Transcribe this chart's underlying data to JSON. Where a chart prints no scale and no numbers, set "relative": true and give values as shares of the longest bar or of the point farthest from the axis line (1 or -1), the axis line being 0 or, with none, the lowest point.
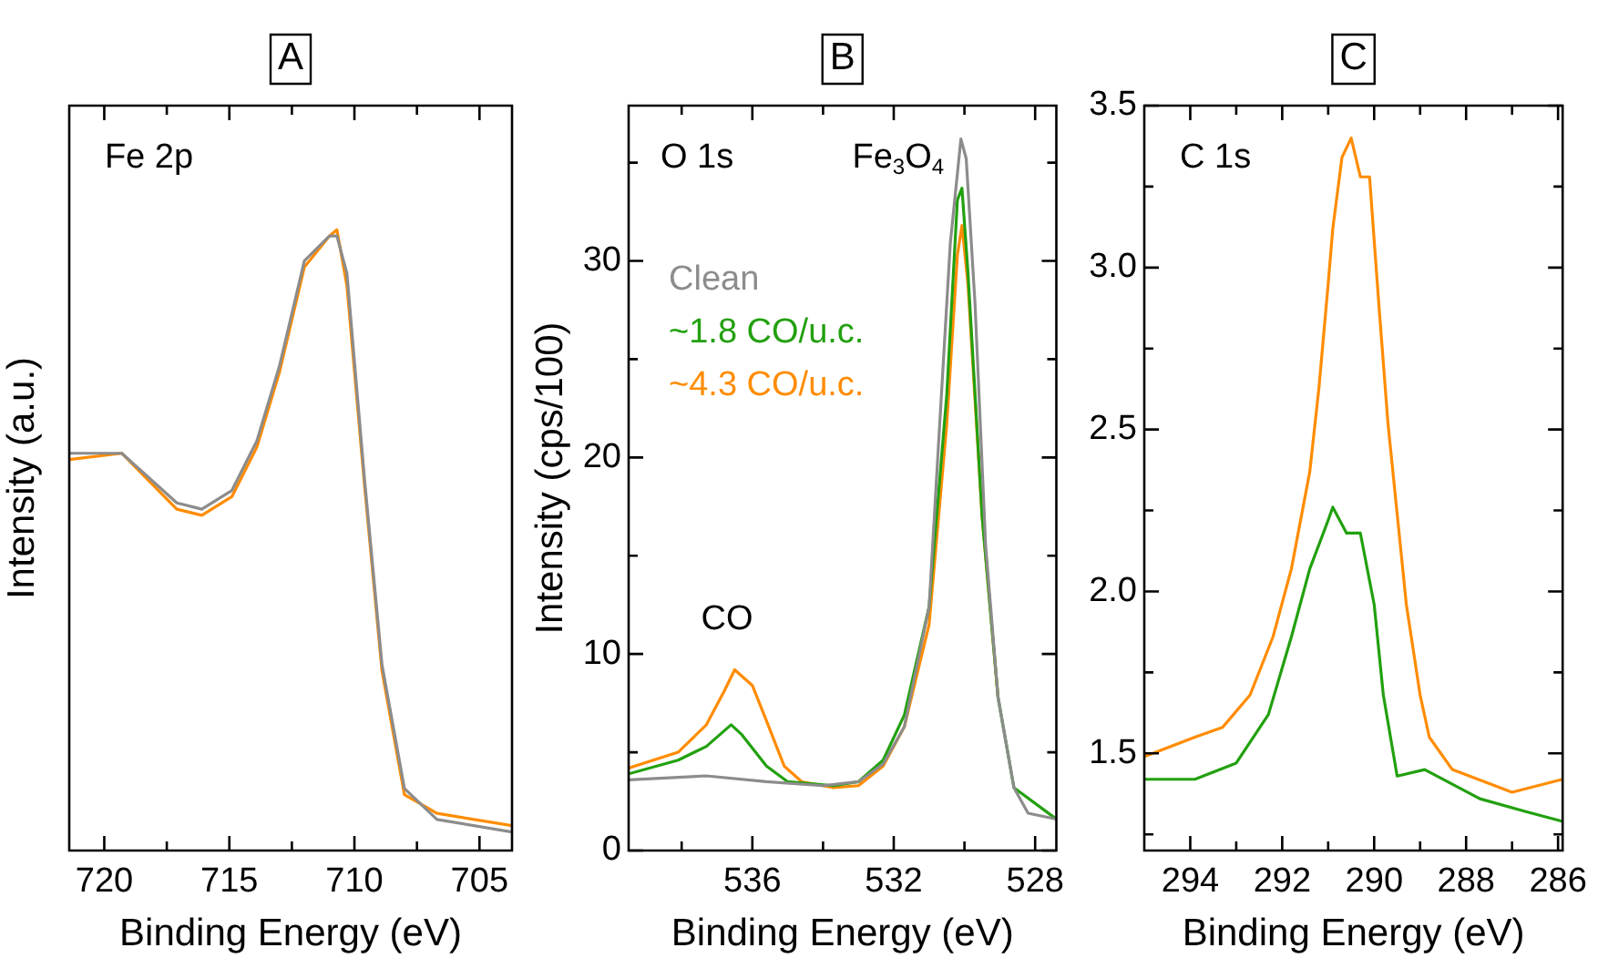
{
  "chart_data": [
    {
      "type": "line",
      "title": "A",
      "xlabel": "Binding Energy (eV)",
      "ylabel": "Intensity (a.u.)",
      "annotations": [
        "Fe 2p"
      ],
      "relative": true,
      "tick_labels": "x",
      "grid": false,
      "legend": false,
      "xlim": [
        721.4,
        703.7
      ],
      "xticks": [
        720,
        {
          "value": 717.5,
          "label": null
        },
        715,
        {
          "value": 712.5,
          "label": null
        },
        710,
        {
          "value": 707.5,
          "label": null
        },
        705
      ],
      "x": [
        721.4,
        719.3,
        717.1,
        716.1,
        714.9,
        713.9,
        713.0,
        712.0,
        711.0,
        710.7,
        710.3,
        709.6,
        708.9,
        708.0,
        706.7,
        703.7
      ],
      "series": [
        {
          "color": "#8c8c8c",
          "values": [
            0.64,
            0.64,
            0.56,
            0.55,
            0.58,
            0.66,
            0.78,
            0.95,
            0.99,
            0.99,
            0.93,
            0.6,
            0.3,
            0.1,
            0.05,
            0.03
          ]
        },
        {
          "color": "#ff8c00",
          "values": [
            0.63,
            0.64,
            0.55,
            0.54,
            0.57,
            0.65,
            0.77,
            0.94,
            0.99,
            1.0,
            0.91,
            0.59,
            0.29,
            0.09,
            0.06,
            0.04
          ]
        }
      ]
    },
    {
      "type": "line",
      "title": "B",
      "xlabel": "Binding Energy (eV)",
      "ylabel": "Intensity (cps/100)",
      "annotations": [
        "O 1s",
        "CO",
        "Fe$_{3}$O$_{4}$"
      ],
      "grid": false,
      "legend": "top left",
      "xlim": [
        539.5,
        527.4
      ],
      "xticks": [
        {
          "value": 538,
          "label": null
        },
        536,
        {
          "value": 534,
          "label": null
        },
        532,
        {
          "value": 530,
          "label": null
        },
        528
      ],
      "ylim": [
        0,
        37.9
      ],
      "yticks": [
        0,
        {
          "value": 5,
          "label": null
        },
        10,
        {
          "value": 15,
          "label": null
        },
        20,
        {
          "value": 25,
          "label": null
        },
        30,
        {
          "value": 35,
          "label": null
        }
      ],
      "series": [
        {
          "name": "Clean",
          "color": "#8c8c8c",
          "x": [
            539.5,
            537.3,
            535.6,
            534.0,
            533.0,
            532.3,
            531.7,
            531.0,
            530.7,
            530.4,
            530.1,
            529.95,
            529.7,
            529.4,
            529.05,
            528.6,
            528.2,
            527.4
          ],
          "values": [
            3.6,
            3.8,
            3.5,
            3.3,
            3.5,
            4.4,
            6.3,
            12.4,
            21.7,
            30.9,
            36.2,
            35.2,
            27.8,
            15.5,
            7.8,
            3.2,
            1.9,
            1.6
          ]
        },
        {
          "name": "~1.8 CO/u.c.",
          "color": "#22a00f",
          "x": [
            539.5,
            538.1,
            537.3,
            536.6,
            536.3,
            535.6,
            535.0,
            533.7,
            533.0,
            532.3,
            531.7,
            531.0,
            530.5,
            530.2,
            530.07,
            529.9,
            529.5,
            529.05,
            528.6,
            527.4
          ],
          "values": [
            3.9,
            4.6,
            5.3,
            6.4,
            5.9,
            4.3,
            3.5,
            3.3,
            3.5,
            4.6,
            6.9,
            12.4,
            23.2,
            33.1,
            33.7,
            29.4,
            17.0,
            7.8,
            3.2,
            1.6
          ]
        },
        {
          "name": "~4.3 CO/u.c.",
          "color": "#ff8c00",
          "x": [
            539.5,
            538.1,
            537.3,
            536.8,
            536.5,
            536.0,
            535.6,
            535.1,
            534.6,
            533.7,
            533.0,
            532.3,
            531.7,
            531.0,
            530.5,
            530.2,
            530.07,
            529.9,
            529.5,
            529.05
          ],
          "values": [
            4.2,
            5.0,
            6.4,
            8.1,
            9.2,
            8.4,
            6.6,
            4.3,
            3.5,
            3.2,
            3.3,
            4.3,
            6.3,
            11.5,
            21.7,
            30.3,
            31.8,
            28.8,
            17.0,
            7.8
          ]
        }
      ]
    },
    {
      "type": "line",
      "title": "C",
      "xlabel": "Binding Energy (eV)",
      "annotations": [
        "C 1s"
      ],
      "grid": false,
      "legend": false,
      "xlim": [
        295.0,
        285.9
      ],
      "xticks": [
        294,
        {
          "value": 293,
          "label": null
        },
        292,
        {
          "value": 291,
          "label": null
        },
        290,
        {
          "value": 289,
          "label": null
        },
        288,
        {
          "value": 287,
          "label": null
        },
        286
      ],
      "ylim": [
        1.2,
        3.5
      ],
      "yticks": [
        {
          "value": 1.25,
          "label": null
        },
        {
          "value": 1.5,
          "label": "1.5"
        },
        {
          "value": 1.75,
          "label": null
        },
        {
          "value": 2,
          "label": "2.0"
        },
        {
          "value": 2.25,
          "label": null
        },
        {
          "value": 2.5,
          "label": "2.5"
        },
        {
          "value": 2.75,
          "label": null
        },
        {
          "value": 3,
          "label": "3.0"
        },
        {
          "value": 3.25,
          "label": null
        },
        {
          "value": 3.5,
          "label": "3.5"
        }
      ],
      "series": [
        {
          "color": "#ff8c00",
          "x": [
            295.0,
            293.9,
            293.3,
            292.7,
            292.2,
            291.8,
            291.4,
            291.2,
            291.0,
            290.9,
            290.7,
            290.5,
            290.3,
            290.1,
            289.9,
            289.7,
            289.5,
            289.3,
            289.0,
            288.8,
            288.3,
            287.0,
            285.9
          ],
          "values": [
            1.49,
            1.55,
            1.58,
            1.68,
            1.86,
            2.07,
            2.37,
            2.63,
            2.95,
            3.12,
            3.34,
            3.4,
            3.28,
            3.28,
            2.89,
            2.52,
            2.24,
            1.96,
            1.68,
            1.55,
            1.45,
            1.38,
            1.42
          ]
        },
        {
          "color": "#22a00f",
          "x": [
            295.0,
            293.9,
            293.0,
            292.3,
            291.8,
            291.4,
            291.0,
            290.9,
            290.6,
            290.3,
            290.0,
            289.8,
            289.5,
            288.9,
            287.7,
            286.7,
            285.9
          ],
          "values": [
            1.42,
            1.42,
            1.47,
            1.62,
            1.86,
            2.07,
            2.22,
            2.26,
            2.18,
            2.18,
            1.96,
            1.68,
            1.43,
            1.45,
            1.36,
            1.32,
            1.29
          ]
        }
      ]
    }
  ]
}
